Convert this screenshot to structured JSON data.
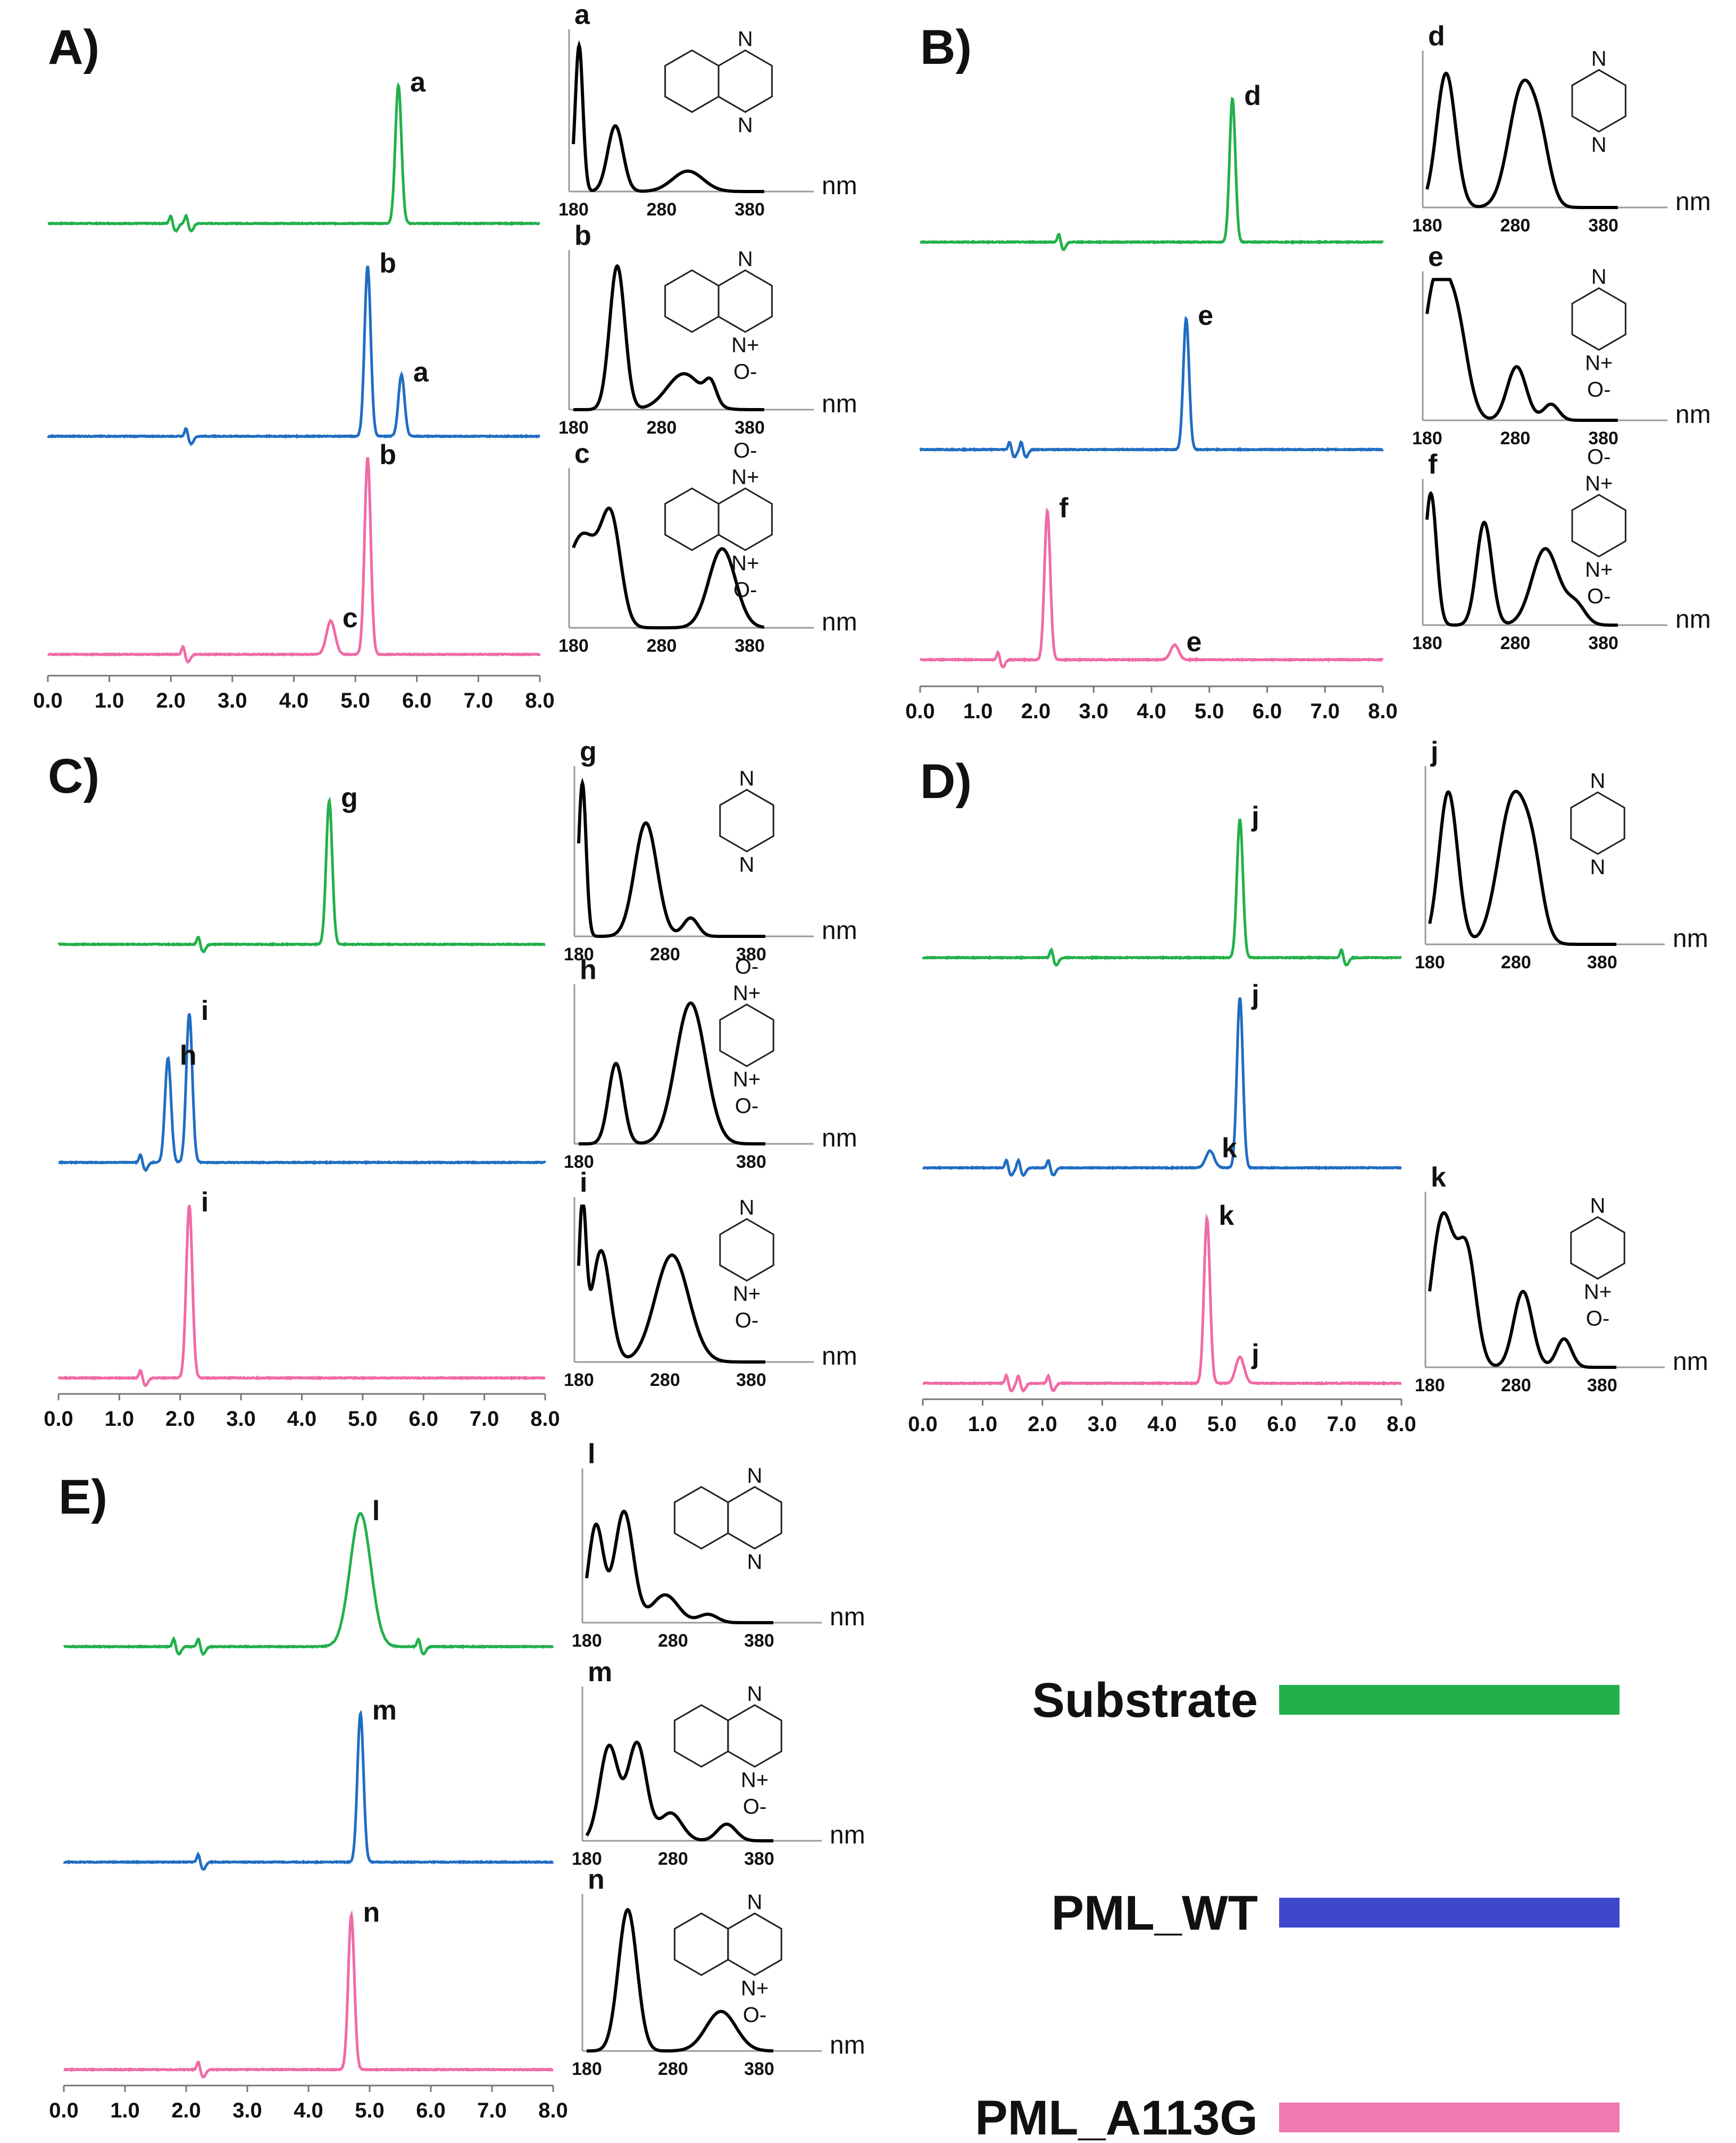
{
  "colors": {
    "substrate": "#22b04a",
    "wt": "#1f6dc2",
    "mutant": "#f06aa6",
    "uv": "#000000",
    "legend_wt": "#3f48cc"
  },
  "legend": {
    "items": [
      {
        "label": "Substrate",
        "color": "#22b04a"
      },
      {
        "label": "PML_WT",
        "color": "#3f48cc"
      },
      {
        "label": "PML_A113G",
        "color": "#f07ab0"
      }
    ]
  },
  "chart_data": [
    {
      "panel": "A)",
      "type": "line",
      "x_ticks": [
        "0.0",
        "1.0",
        "2.0",
        "3.0",
        "4.0",
        "5.0",
        "6.0",
        "7.0",
        "8.0"
      ],
      "xlim": [
        0,
        8
      ],
      "traces": [
        {
          "series": "Substrate",
          "baseline_noise": [
            2.0,
            2.25
          ],
          "peaks": [
            {
              "label": "a",
              "t": 5.7,
              "height": 1.0
            }
          ]
        },
        {
          "series": "PML_WT",
          "baseline_noise": [
            2.25
          ],
          "peaks": [
            {
              "label": "b",
              "t": 5.2,
              "height": 1.0
            },
            {
              "label": "a",
              "t": 5.75,
              "height": 0.36
            }
          ]
        },
        {
          "series": "PML_A113G",
          "baseline_noise": [
            2.2
          ],
          "peaks": [
            {
              "label": "c",
              "t": 4.6,
              "height": 0.17
            },
            {
              "label": "b",
              "t": 5.2,
              "height": 1.0
            }
          ]
        }
      ],
      "uv_spectra": [
        {
          "label": "a",
          "ticks": [
            "180",
            "280",
            "380"
          ],
          "unit": "nm",
          "structure": "quinoxaline",
          "chem_text": [
            "N",
            "N"
          ]
        },
        {
          "label": "b",
          "ticks": [
            "180",
            "280",
            "380"
          ],
          "unit": "nm",
          "structure": "quinoxaline N-oxide",
          "chem_text": [
            "N",
            "N+",
            "O-"
          ]
        },
        {
          "label": "c",
          "ticks": [
            "180",
            "280",
            "380"
          ],
          "unit": "nm",
          "structure": "quinoxaline N,N'-dioxide",
          "chem_text": [
            "O-",
            "N+",
            "N+",
            "O-"
          ]
        }
      ]
    },
    {
      "panel": "B)",
      "type": "line",
      "x_ticks": [
        "0.0",
        "1.0",
        "2.0",
        "3.0",
        "4.0",
        "5.0",
        "6.0",
        "7.0",
        "8.0"
      ],
      "xlim": [
        0,
        8
      ],
      "traces": [
        {
          "series": "Substrate",
          "baseline_noise": [
            2.4
          ],
          "peaks": [
            {
              "label": "d",
              "t": 5.4,
              "height": 1.0
            }
          ]
        },
        {
          "series": "PML_WT",
          "baseline_noise": [
            1.55,
            1.75
          ],
          "peaks": [
            {
              "label": "e",
              "t": 4.6,
              "height": 0.85
            }
          ]
        },
        {
          "series": "PML_A113G",
          "baseline_noise": [
            1.35
          ],
          "peaks": [
            {
              "label": "f",
              "t": 2.2,
              "height": 1.0
            },
            {
              "label": "e",
              "t": 4.4,
              "height": 0.1
            }
          ]
        }
      ],
      "uv_spectra": [
        {
          "label": "d",
          "ticks": [
            "180",
            "280",
            "380"
          ],
          "unit": "nm",
          "structure": "2,5-dimethylpyrazine",
          "chem_text": [
            "N",
            "N"
          ]
        },
        {
          "label": "e",
          "ticks": [
            "180",
            "280",
            "380"
          ],
          "unit": "nm",
          "structure": "2,5-dimethylpyrazine N-oxide",
          "chem_text": [
            "N",
            "N+",
            "O-"
          ]
        },
        {
          "label": "f",
          "ticks": [
            "180",
            "280",
            "380"
          ],
          "unit": "nm",
          "structure": "2,5-dimethylpyrazine N,N'-dioxide",
          "chem_text": [
            "O-",
            "N+",
            "N+",
            "O-"
          ]
        }
      ]
    },
    {
      "panel": "C)",
      "type": "line",
      "x_ticks": [
        "0.0",
        "1.0",
        "2.0",
        "3.0",
        "4.0",
        "5.0",
        "6.0",
        "7.0",
        "8.0"
      ],
      "xlim": [
        0,
        8
      ],
      "traces": [
        {
          "series": "Substrate",
          "baseline_noise": [
            2.3
          ],
          "peaks": [
            {
              "label": "g",
              "t": 4.45,
              "height": 1.0
            }
          ]
        },
        {
          "series": "PML_WT",
          "baseline_noise": [
            1.35
          ],
          "peaks": [
            {
              "label": "h",
              "t": 1.8,
              "height": 0.7
            },
            {
              "label": "i",
              "t": 2.15,
              "height": 1.0
            }
          ]
        },
        {
          "series": "PML_A113G",
          "baseline_noise": [
            1.35
          ],
          "peaks": [
            {
              "label": "i",
              "t": 2.15,
              "height": 1.0
            }
          ]
        }
      ],
      "uv_spectra": [
        {
          "label": "g",
          "ticks": [
            "180",
            "280",
            "380"
          ],
          "unit": "nm",
          "structure": "pyrazine",
          "chem_text": [
            "N",
            "N"
          ]
        },
        {
          "label": "h",
          "ticks": [
            "180",
            "380"
          ],
          "unit": "nm",
          "structure": "pyrazine N,N'-dioxide",
          "chem_text": [
            "O-",
            "N+",
            "N+",
            "O-"
          ]
        },
        {
          "label": "i",
          "ticks": [
            "180",
            "280",
            "380"
          ],
          "unit": "nm",
          "structure": "pyrazine N-oxide",
          "chem_text": [
            "N",
            "N+",
            "O-"
          ]
        }
      ]
    },
    {
      "panel": "D)",
      "type": "line",
      "x_ticks": [
        "0.0",
        "1.0",
        "2.0",
        "3.0",
        "4.0",
        "5.0",
        "6.0",
        "7.0",
        "8.0"
      ],
      "xlim": [
        0,
        8
      ],
      "traces": [
        {
          "series": "Substrate",
          "baseline_noise": [
            2.15,
            7.0
          ],
          "peaks": [
            {
              "label": "j",
              "t": 5.3,
              "height": 1.0
            }
          ]
        },
        {
          "series": "PML_WT",
          "baseline_noise": [
            1.4,
            1.6,
            2.1
          ],
          "peaks": [
            {
              "label": "k",
              "t": 4.8,
              "height": 0.1
            },
            {
              "label": "j",
              "t": 5.3,
              "height": 1.0
            }
          ]
        },
        {
          "series": "PML_A113G",
          "baseline_noise": [
            1.4,
            1.6,
            2.1
          ],
          "peaks": [
            {
              "label": "k",
              "t": 4.75,
              "height": 1.0
            },
            {
              "label": "j",
              "t": 5.3,
              "height": 0.16
            }
          ]
        }
      ],
      "uv_spectra": [
        {
          "label": "j",
          "ticks": [
            "180",
            "280",
            "380"
          ],
          "unit": "nm",
          "structure": "2,3,5-trimethylpyrazine",
          "chem_text": [
            "N",
            "N"
          ]
        },
        {
          "label": "k",
          "ticks": [
            "180",
            "280",
            "380"
          ],
          "unit": "nm",
          "structure": "2,3,5-trimethylpyrazine N-oxide",
          "chem_text": [
            "N",
            "N+",
            "O-"
          ]
        }
      ]
    },
    {
      "panel": "E)",
      "type": "line",
      "x_ticks": [
        "0.0",
        "1.0",
        "2.0",
        "3.0",
        "4.0",
        "5.0",
        "6.0",
        "7.0",
        "8.0"
      ],
      "xlim": [
        0,
        8
      ],
      "traces": [
        {
          "series": "Substrate",
          "baseline_noise": [
            1.8,
            2.2,
            5.8
          ],
          "peaks": [
            {
              "label": "l",
              "t": 4.85,
              "height": 1.0
            }
          ]
        },
        {
          "series": "PML_WT",
          "baseline_noise": [
            2.2
          ],
          "peaks": [
            {
              "label": "m",
              "t": 4.85,
              "height": 1.0
            }
          ]
        },
        {
          "series": "PML_A113G",
          "baseline_noise": [
            2.2
          ],
          "peaks": [
            {
              "label": "n",
              "t": 4.7,
              "height": 1.0
            }
          ]
        }
      ],
      "uv_spectra": [
        {
          "label": "l",
          "ticks": [
            "180",
            "280",
            "380"
          ],
          "unit": "nm",
          "structure": "quinazoline",
          "chem_text": [
            "N",
            "N"
          ]
        },
        {
          "label": "m",
          "ticks": [
            "180",
            "280",
            "380"
          ],
          "unit": "nm",
          "structure": "quinazoline 3-oxide",
          "chem_text": [
            "N",
            "N+",
            "O-"
          ]
        },
        {
          "label": "n",
          "ticks": [
            "180",
            "280",
            "380"
          ],
          "unit": "nm",
          "structure": "quinazoline 1-oxide",
          "chem_text": [
            "N",
            "N+",
            "O-"
          ]
        }
      ]
    }
  ]
}
